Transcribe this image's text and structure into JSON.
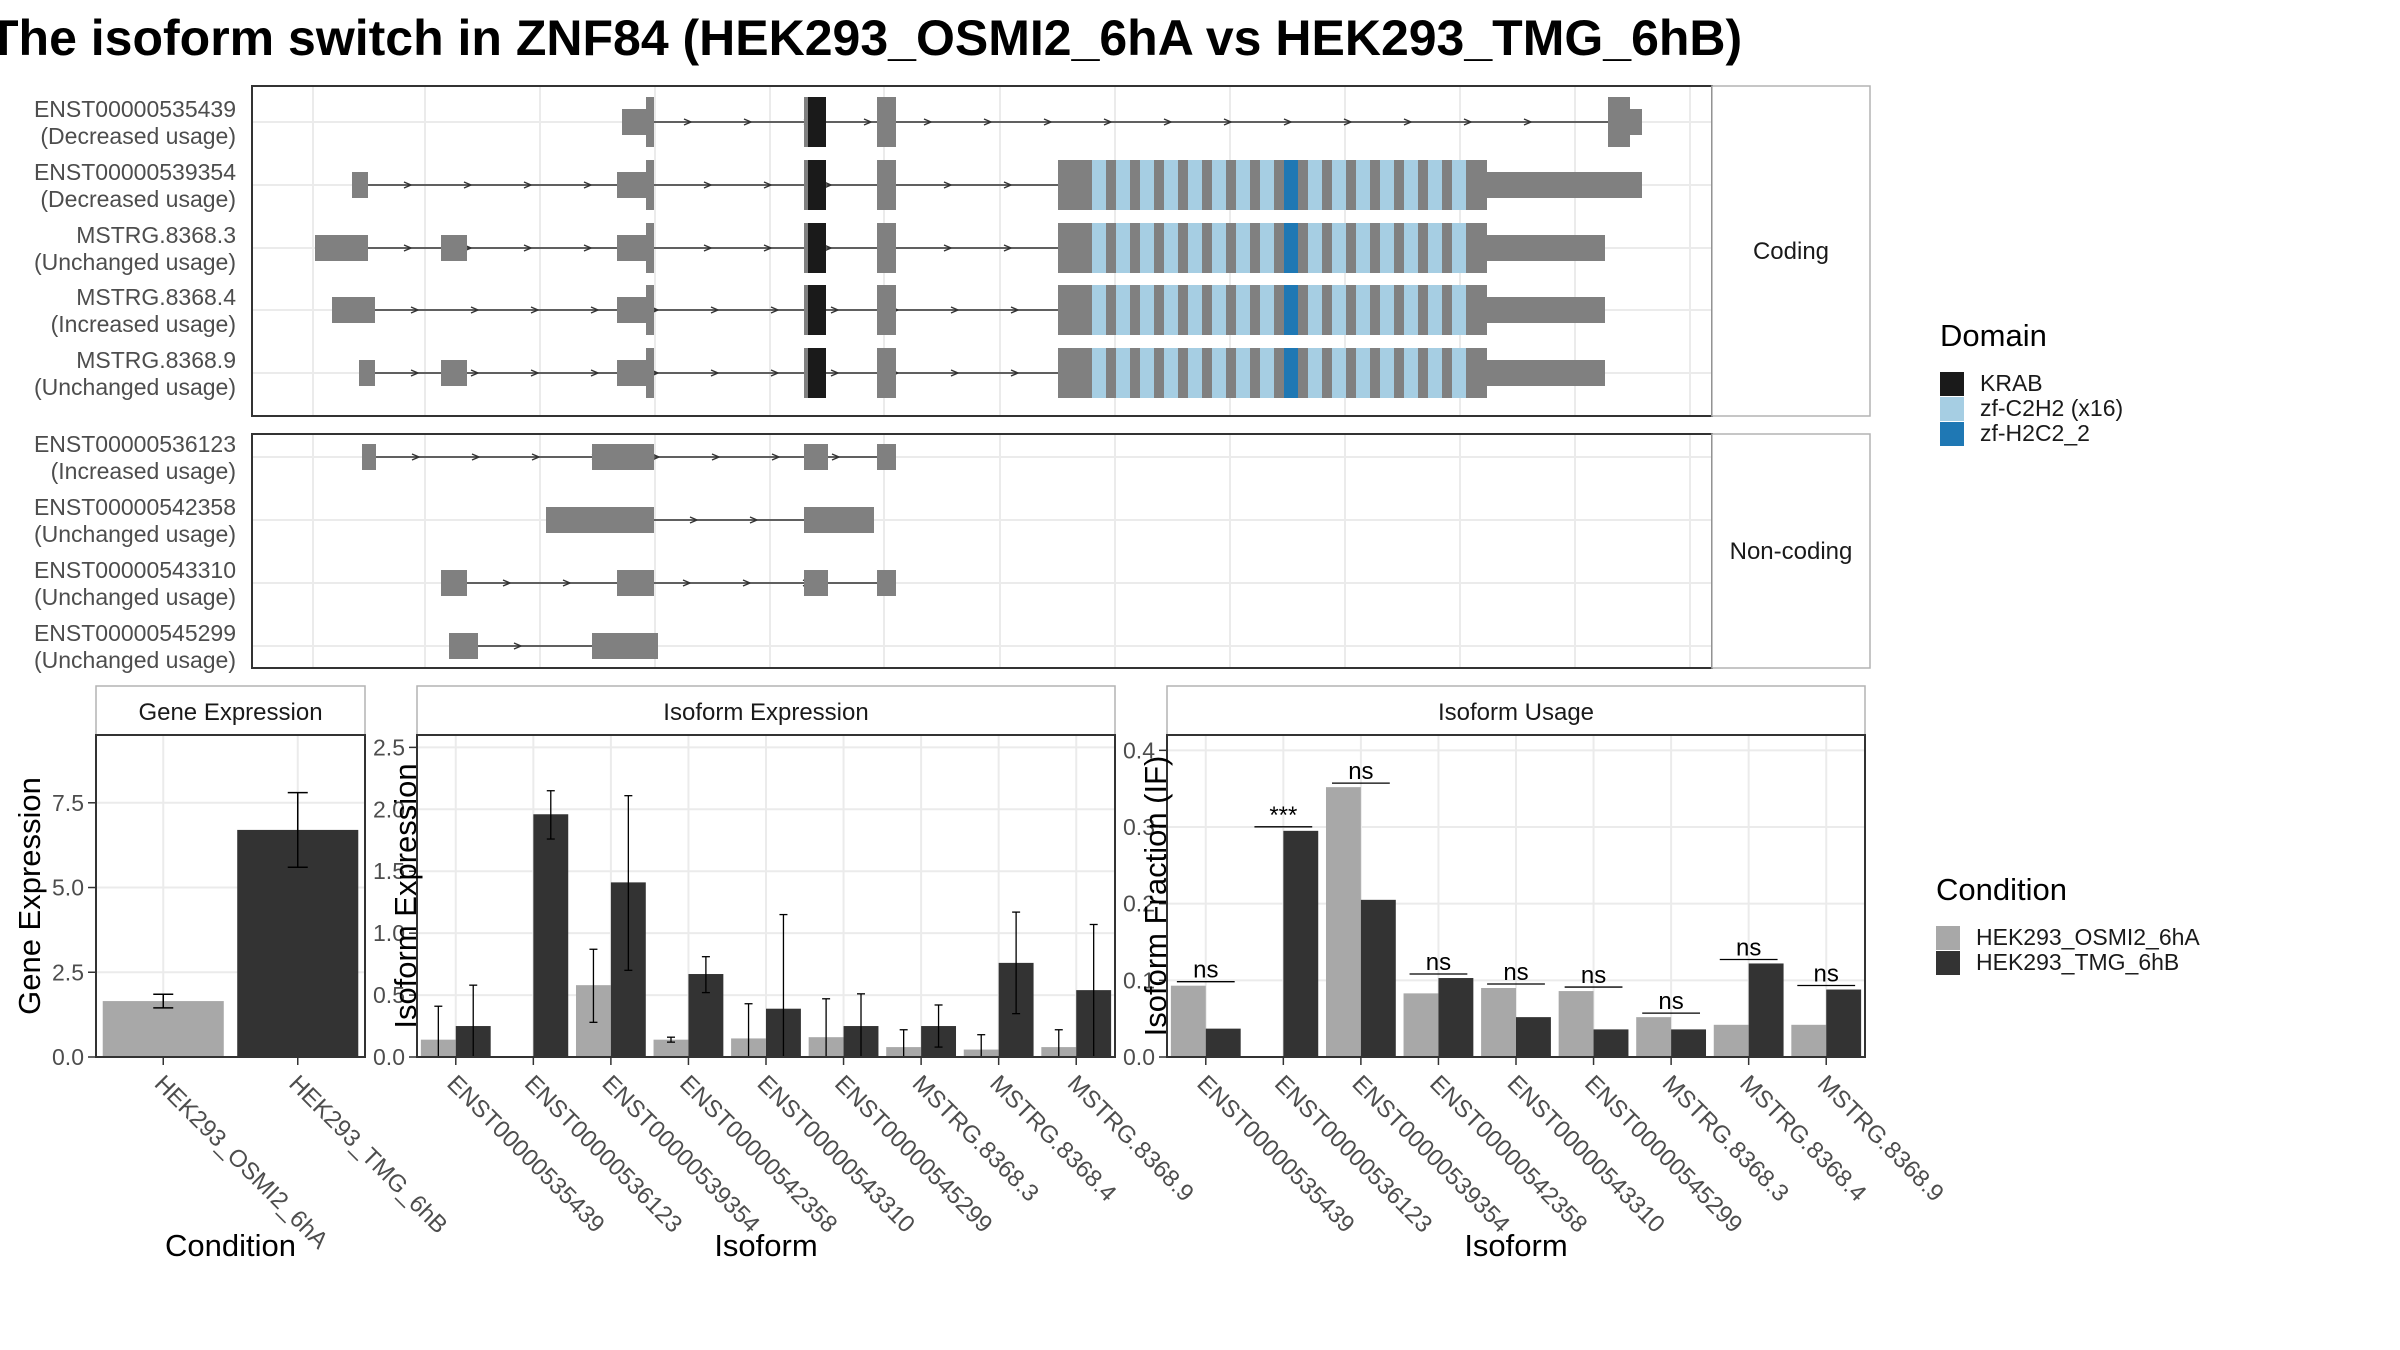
{
  "title": "The isoform switch in ZNF84 (HEK293_OSMI2_6hA vs HEK293_TMG_6hB)",
  "domain_legend": {
    "title": "Domain",
    "items": [
      {
        "label": "KRAB",
        "color": "#1a1a1a"
      },
      {
        "label": "zf-C2H2 (x16)",
        "color": "#a6cee3"
      },
      {
        "label": "zf-H2C2_2",
        "color": "#1f78b4"
      }
    ]
  },
  "condition_legend": {
    "title": "Condition",
    "items": [
      {
        "label": "HEK293_OSMI2_6hA",
        "color": "#a8a8a8"
      },
      {
        "label": "HEK293_TMG_6hB",
        "color": "#333333"
      }
    ]
  },
  "structure": {
    "panels": [
      {
        "strip": "Coding",
        "transcripts": [
          {
            "name": "ENST00000535439",
            "usage": "(Decreased usage)",
            "exons": [
              [
                1,
                4
              ],
              [
                11,
                13
              ],
              [
                19,
                23
              ],
              [
                44,
                49
              ],
              [
                130,
                134
              ],
              [
                149,
                155
              ]
            ],
            "cds": [
              [
                14,
                17
              ],
              [
                24,
                27
              ]
            ],
            "utr_left": true
          },
          {
            "name": "ENST00000539354",
            "usage": "(Decreased usage)",
            "exons": [
              [
                15,
                19
              ],
              [
                70,
                78
              ],
              [
                165,
                172
              ],
              [
                319,
                336
              ]
            ],
            "cds": [
              [
                112,
                118
              ],
              [
                149,
                155
              ]
            ],
            "long": true
          },
          {
            "name": "MSTRG.8368.3",
            "usage": "(Unchanged usage)",
            "exons": [
              [
                1,
                12
              ],
              [
                34,
                40
              ],
              [
                70,
                78
              ],
              [
                165,
                172
              ],
              [
                296,
                320
              ]
            ],
            "cds": [
              [
                112,
                118
              ],
              [
                149,
                155
              ]
            ],
            "long": true
          },
          {
            "name": "MSTRG.8368.4",
            "usage": "(Increased usage)",
            "exons": [
              [
                5,
                13
              ],
              [
                70,
                78
              ],
              [
                165,
                172
              ],
              [
                296,
                320
              ]
            ],
            "cds": [
              [
                112,
                118
              ],
              [
                149,
                155
              ]
            ],
            "long": true
          },
          {
            "name": "MSTRG.8368.9",
            "usage": "(Unchanged usage)",
            "exons": [
              [
                16,
                20
              ],
              [
                34,
                40
              ],
              [
                70,
                78
              ],
              [
                165,
                172
              ],
              [
                296,
                320
              ]
            ],
            "cds": [
              [
                112,
                118
              ],
              [
                149,
                155
              ]
            ],
            "long": true
          }
        ]
      },
      {
        "strip": "Non-coding",
        "transcripts": [
          {
            "name": "ENST00000536123",
            "usage": "(Increased usage)"
          },
          {
            "name": "ENST00000542358",
            "usage": "(Unchanged usage)"
          },
          {
            "name": "ENST00000543310",
            "usage": "(Unchanged usage)"
          },
          {
            "name": "ENST00000545299",
            "usage": "(Unchanged usage)"
          }
        ]
      }
    ]
  },
  "chart_data": [
    {
      "type": "bar",
      "title": "Gene Expression",
      "xlabel": "Condition",
      "ylabel": "Gene Expression",
      "categories": [
        "HEK293_OSMI2_6hA",
        "HEK293_TMG_6hB"
      ],
      "values": [
        1.65,
        6.7
      ],
      "errors": [
        [
          1.45,
          1.85
        ],
        [
          5.6,
          7.8
        ]
      ],
      "ylim": [
        0,
        9.5
      ],
      "yticks": [
        "0.0",
        "2.5",
        "5.0",
        "7.5"
      ]
    },
    {
      "type": "bar",
      "title": "Isoform Expression",
      "xlabel": "Isoform",
      "ylabel": "Isoform Expression",
      "categories": [
        "ENST00000535439",
        "ENST00000536123",
        "ENST00000539354",
        "ENST00000542358",
        "ENST00000543310",
        "ENST00000545299",
        "MSTRG.8368.3",
        "MSTRG.8368.4",
        "MSTRG.8368.9"
      ],
      "series": [
        {
          "name": "HEK293_OSMI2_6hA",
          "values": [
            0.14,
            0.0,
            0.58,
            0.14,
            0.15,
            0.16,
            0.08,
            0.06,
            0.08
          ],
          "errors": [
            [
              0.0,
              0.41
            ],
            [
              0.0,
              0.0
            ],
            [
              0.28,
              0.87
            ],
            [
              0.12,
              0.16
            ],
            [
              0.0,
              0.43
            ],
            [
              0.0,
              0.47
            ],
            [
              0.0,
              0.22
            ],
            [
              0.0,
              0.18
            ],
            [
              0.0,
              0.22
            ]
          ]
        },
        {
          "name": "HEK293_TMG_6hB",
          "values": [
            0.25,
            1.96,
            1.41,
            0.67,
            0.39,
            0.25,
            0.25,
            0.76,
            0.54
          ],
          "errors": [
            [
              0.0,
              0.58
            ],
            [
              1.76,
              2.15
            ],
            [
              0.7,
              2.11
            ],
            [
              0.52,
              0.81
            ],
            [
              0.0,
              1.15
            ],
            [
              0.0,
              0.51
            ],
            [
              0.08,
              0.42
            ],
            [
              0.35,
              1.17
            ],
            [
              0.0,
              1.07
            ]
          ]
        }
      ],
      "ylim": [
        0,
        2.6
      ],
      "yticks": [
        "0.0",
        "0.5",
        "1.0",
        "1.5",
        "2.0",
        "2.5"
      ]
    },
    {
      "type": "bar",
      "title": "Isoform Usage",
      "xlabel": "Isoform",
      "ylabel": "Isoform Fraction (IF)",
      "categories": [
        "ENST00000535439",
        "ENST00000536123",
        "ENST00000539354",
        "ENST00000542358",
        "ENST00000543310",
        "ENST00000545299",
        "MSTRG.8368.3",
        "MSTRG.8368.4",
        "MSTRG.8368.9"
      ],
      "series": [
        {
          "name": "HEK293_OSMI2_6hA",
          "values": [
            0.093,
            0.0,
            0.352,
            0.083,
            0.09,
            0.086,
            0.052,
            0.042,
            0.042
          ]
        },
        {
          "name": "HEK293_TMG_6hB",
          "values": [
            0.037,
            0.295,
            0.205,
            0.103,
            0.052,
            0.036,
            0.036,
            0.122,
            0.088
          ]
        }
      ],
      "significance": [
        "ns",
        "***",
        "ns",
        "ns",
        "ns",
        "ns",
        "ns",
        "ns",
        "ns"
      ],
      "ylim": [
        0,
        0.42
      ],
      "yticks": [
        "0.0",
        "0.1",
        "0.2",
        "0.3",
        "0.4"
      ]
    }
  ]
}
